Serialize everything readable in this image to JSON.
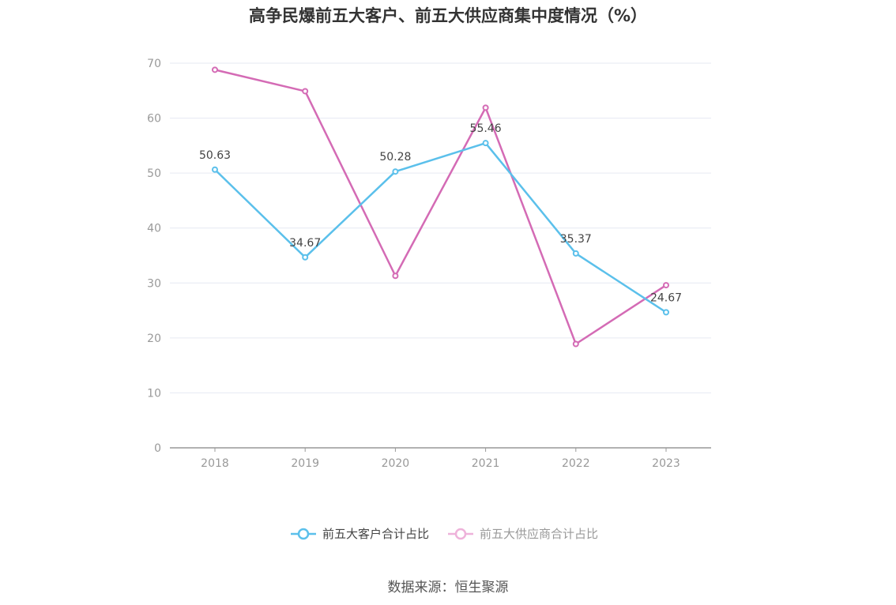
{
  "chart_data": {
    "type": "line",
    "title": "高争民爆前五大客户、前五大供应商集中度情况（%）",
    "categories": [
      "2018",
      "2019",
      "2020",
      "2021",
      "2022",
      "2023"
    ],
    "ylim": [
      0,
      70
    ],
    "yticks": [
      0,
      10,
      20,
      30,
      40,
      50,
      60,
      70
    ],
    "grid": true,
    "legend_position": "bottom",
    "series": [
      {
        "name": "前五大客户合计占比",
        "color": "#5bc0eb",
        "values": [
          50.63,
          34.67,
          50.28,
          55.46,
          35.37,
          24.67
        ],
        "labels": [
          "50.63",
          "34.67",
          "50.28",
          "55.46",
          "35.37",
          "24.67"
        ]
      },
      {
        "name": "前五大供应商合计占比",
        "color": "#d46bb5",
        "values": [
          68.8,
          64.9,
          31.3,
          61.9,
          18.9,
          29.6
        ]
      }
    ]
  },
  "source": "数据来源：恒生聚源"
}
